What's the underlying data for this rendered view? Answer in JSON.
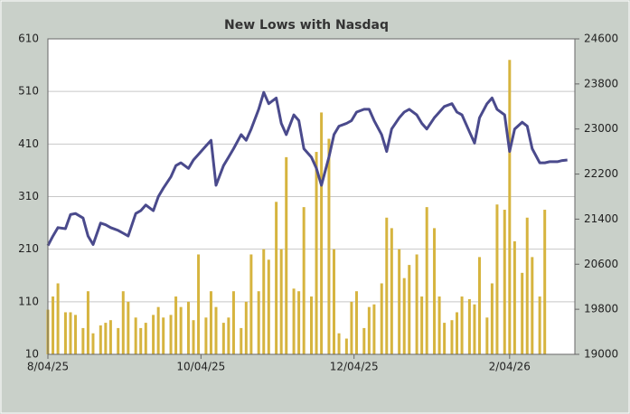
{
  "chart_data": {
    "type": "bar-line",
    "title": "New Lows with Nasdaq",
    "x": [
      "2025-08-04",
      "2025-08-06",
      "2025-08-08",
      "2025-08-11",
      "2025-08-13",
      "2025-08-15",
      "2025-08-18",
      "2025-08-20",
      "2025-08-22",
      "2025-08-25",
      "2025-08-27",
      "2025-08-29",
      "2025-09-01",
      "2025-09-03",
      "2025-09-05",
      "2025-09-08",
      "2025-09-10",
      "2025-09-12",
      "2025-09-15",
      "2025-09-17",
      "2025-09-19",
      "2025-09-22",
      "2025-09-24",
      "2025-09-26",
      "2025-09-29",
      "2025-10-01",
      "2025-10-03",
      "2025-10-06",
      "2025-10-08",
      "2025-10-10",
      "2025-10-13",
      "2025-10-15",
      "2025-10-17",
      "2025-10-20",
      "2025-10-22",
      "2025-10-24",
      "2025-10-27",
      "2025-10-29",
      "2025-10-31",
      "2025-11-03",
      "2025-11-05",
      "2025-11-07",
      "2025-11-10",
      "2025-11-12",
      "2025-11-14",
      "2025-11-17",
      "2025-11-19",
      "2025-11-21",
      "2025-11-24",
      "2025-11-26",
      "2025-11-28",
      "2025-12-01",
      "2025-12-03",
      "2025-12-05",
      "2025-12-08",
      "2025-12-10",
      "2025-12-12",
      "2025-12-15",
      "2025-12-17",
      "2025-12-19",
      "2025-12-22",
      "2025-12-24",
      "2025-12-26",
      "2025-12-29",
      "2025-12-31",
      "2026-01-02",
      "2026-01-05",
      "2026-01-07",
      "2026-01-09",
      "2026-01-12",
      "2026-01-14",
      "2026-01-16",
      "2026-01-19",
      "2026-01-21",
      "2026-01-23",
      "2026-01-26",
      "2026-01-28",
      "2026-01-30",
      "2026-02-02",
      "2026-02-04",
      "2026-02-06",
      "2026-02-09",
      "2026-02-11",
      "2026-02-13",
      "2026-02-16",
      "2026-02-18",
      "2026-02-20",
      "2026-02-23",
      "2026-02-25",
      "2026-02-27"
    ],
    "series": [
      {
        "kind": "bar",
        "axis": "y",
        "color": "#d6b43f",
        "values": [
          95,
          120,
          145,
          90,
          90,
          85,
          60,
          130,
          50,
          65,
          70,
          75,
          60,
          130,
          110,
          80,
          60,
          70,
          85,
          100,
          80,
          85,
          120,
          100,
          110,
          75,
          200,
          80,
          130,
          100,
          70,
          80,
          130,
          60,
          110,
          200,
          130,
          210,
          190,
          300,
          210,
          385,
          135,
          130,
          290,
          120,
          395,
          470,
          420,
          210,
          50,
          40,
          110,
          130,
          60,
          100,
          105,
          145,
          270,
          250,
          210,
          155,
          180,
          200,
          120,
          290,
          250,
          120,
          70,
          75,
          90,
          120,
          115,
          105,
          195,
          80,
          145,
          295,
          285,
          570,
          225,
          165,
          270,
          195,
          120,
          285,
          null,
          null,
          null,
          null
        ]
      },
      {
        "kind": "line",
        "axis": "y2",
        "color": "#4a4a8c",
        "values": [
          20930,
          21100,
          21250,
          21230,
          21480,
          21500,
          21420,
          21100,
          20950,
          21330,
          21300,
          21250,
          21200,
          21150,
          21100,
          21500,
          21550,
          21650,
          21550,
          21800,
          21950,
          22150,
          22350,
          22400,
          22300,
          22450,
          22550,
          22700,
          22800,
          22000,
          22350,
          22500,
          22650,
          22900,
          22800,
          23000,
          23350,
          23650,
          23450,
          23550,
          23100,
          22900,
          23250,
          23150,
          22650,
          22500,
          22300,
          22000,
          22500,
          22900,
          23050,
          23100,
          23150,
          23300,
          23350,
          23350,
          23150,
          22900,
          22600,
          23000,
          23200,
          23300,
          23350,
          23250,
          23100,
          23000,
          23200,
          23300,
          23400,
          23450,
          23300,
          23250,
          22950,
          22750,
          23200,
          23450,
          23550,
          23350,
          23250,
          22600,
          23000,
          23120,
          23050,
          22650,
          22400,
          22400,
          22420,
          22420,
          22440,
          22450
        ]
      }
    ],
    "xlim": [
      "2025-08-04",
      "2026-03-02"
    ],
    "xticks": [
      {
        "value": "2025-08-04",
        "label": "8/04/25"
      },
      {
        "value": "2025-10-04",
        "label": "10/04/25"
      },
      {
        "value": "2025-12-04",
        "label": "12/04/25"
      },
      {
        "value": "2026-02-04",
        "label": "2/04/26"
      }
    ],
    "ylim": [
      10,
      610
    ],
    "yticks": [
      10,
      110,
      210,
      310,
      410,
      510,
      610
    ],
    "y2lim": [
      19000,
      24600
    ],
    "y2ticks": [
      19000,
      19800,
      20600,
      21400,
      22200,
      23000,
      23800,
      24600
    ],
    "grid": true
  }
}
